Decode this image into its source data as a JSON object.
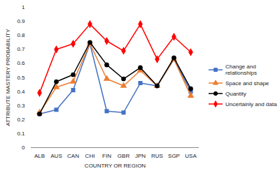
{
  "chart_data": {
    "type": "line",
    "xlabel": "COUNTRY OR REGION",
    "ylabel": "ATTRIBUTE MASTERY PROBABILITY",
    "categories": [
      "ALB",
      "AUS",
      "CAN",
      "CHI",
      "FIN",
      "GBR",
      "JPN",
      "RUS",
      "SGP",
      "USA"
    ],
    "ylim": [
      0,
      1
    ],
    "yticks": [
      0,
      0.1,
      0.2,
      0.3,
      0.4,
      0.5,
      0.6,
      0.7,
      0.8,
      0.9,
      1
    ],
    "grid": false,
    "legend": "right",
    "series": [
      {
        "name": "Change and relationships",
        "color": "#4472c4",
        "marker": "square",
        "values": [
          0.24,
          0.27,
          0.41,
          0.74,
          0.26,
          0.25,
          0.46,
          0.44,
          0.63,
          0.4
        ]
      },
      {
        "name": "Space and shape",
        "color": "#ed7d31",
        "marker": "triangle",
        "values": [
          0.25,
          0.43,
          0.47,
          0.74,
          0.49,
          0.44,
          0.55,
          0.44,
          0.63,
          0.37
        ]
      },
      {
        "name": "Quantity",
        "color": "#000000",
        "marker": "circle",
        "values": [
          0.24,
          0.47,
          0.52,
          0.75,
          0.59,
          0.49,
          0.57,
          0.44,
          0.64,
          0.42
        ]
      },
      {
        "name": "Uncertainly and data",
        "color": "#ff0000",
        "marker": "diamond",
        "values": [
          0.39,
          0.7,
          0.74,
          0.88,
          0.76,
          0.69,
          0.88,
          0.63,
          0.79,
          0.68
        ]
      }
    ]
  }
}
